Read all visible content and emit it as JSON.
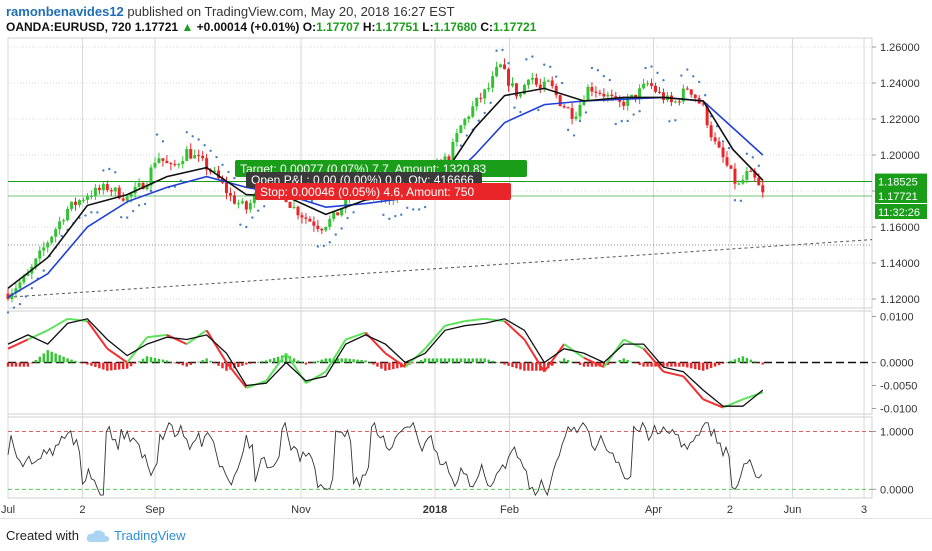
{
  "header": {
    "author": "ramonbenavides12",
    "published": "published on TradingView.com, May 20, 2018 16:27 EST",
    "symbol": "OANDA:EURUSD, 720",
    "last": "1.17721",
    "change": "+0.00014 (+0.01%)",
    "o_label": "O:",
    "o": "1.17707",
    "h_label": "H:",
    "h": "1.17751",
    "l_label": "L:",
    "l": "1.17680",
    "c_label": "C:",
    "c": "1.17721"
  },
  "footer": {
    "created_with": "Created with",
    "brand": "TradingView"
  },
  "colors": {
    "up": "#33c233",
    "down": "#e8262a",
    "ma_fast": "#111111",
    "ma_slow": "#1f3fd6",
    "sar": "#4a7fbf",
    "target": "#1a9e1a",
    "stop": "#e8262a",
    "grid": "#d8d8d8"
  },
  "chart_data": [
    {
      "type": "candlestick",
      "title": "",
      "ylim": [
        1.115,
        1.265
      ],
      "y_ticks": [
        "1.26000",
        "1.24000",
        "1.22000",
        "1.20000",
        "1.18000",
        "1.16000",
        "1.14000",
        "1.12000"
      ],
      "y_tick_values": [
        1.26,
        1.24,
        1.22,
        1.2,
        1.18,
        1.16,
        1.14,
        1.12
      ],
      "x_tick_labels": [
        "Jul",
        "2",
        "Sep",
        "Nov",
        "2018",
        "Feb",
        "Apr",
        "2",
        "Jun",
        "3"
      ],
      "x_tick_positions": [
        0,
        75,
        148,
        295,
        430,
        505,
        650,
        727,
        790,
        862
      ],
      "x_total_units": 870,
      "price_path": [
        [
          0,
          1.123
        ],
        [
          20,
          1.133
        ],
        [
          40,
          1.152
        ],
        [
          60,
          1.17
        ],
        [
          80,
          1.178
        ],
        [
          100,
          1.182
        ],
        [
          120,
          1.176
        ],
        [
          140,
          1.186
        ],
        [
          150,
          1.2
        ],
        [
          165,
          1.192
        ],
        [
          180,
          1.202
        ],
        [
          195,
          1.196
        ],
        [
          210,
          1.188
        ],
        [
          225,
          1.176
        ],
        [
          240,
          1.17
        ],
        [
          255,
          1.182
        ],
        [
          270,
          1.186
        ],
        [
          285,
          1.172
        ],
        [
          300,
          1.165
        ],
        [
          315,
          1.16
        ],
        [
          330,
          1.166
        ],
        [
          345,
          1.178
        ],
        [
          360,
          1.18
        ],
        [
          380,
          1.176
        ],
        [
          400,
          1.18
        ],
        [
          420,
          1.182
        ],
        [
          430,
          1.192
        ],
        [
          445,
          1.2
        ],
        [
          455,
          1.215
        ],
        [
          470,
          1.228
        ],
        [
          485,
          1.238
        ],
        [
          495,
          1.25
        ],
        [
          505,
          1.24
        ],
        [
          515,
          1.232
        ],
        [
          525,
          1.246
        ],
        [
          535,
          1.236
        ],
        [
          545,
          1.24
        ],
        [
          555,
          1.23
        ],
        [
          570,
          1.222
        ],
        [
          585,
          1.238
        ],
        [
          600,
          1.234
        ],
        [
          615,
          1.228
        ],
        [
          630,
          1.232
        ],
        [
          645,
          1.24
        ],
        [
          655,
          1.234
        ],
        [
          670,
          1.228
        ],
        [
          685,
          1.238
        ],
        [
          700,
          1.226
        ],
        [
          710,
          1.208
        ],
        [
          720,
          1.198
        ],
        [
          735,
          1.182
        ],
        [
          745,
          1.19
        ],
        [
          752,
          1.186
        ],
        [
          760,
          1.178
        ]
      ],
      "ma_fast": [
        [
          0,
          1.126
        ],
        [
          40,
          1.143
        ],
        [
          80,
          1.172
        ],
        [
          120,
          1.178
        ],
        [
          160,
          1.188
        ],
        [
          200,
          1.193
        ],
        [
          240,
          1.178
        ],
        [
          280,
          1.177
        ],
        [
          320,
          1.167
        ],
        [
          360,
          1.175
        ],
        [
          400,
          1.178
        ],
        [
          440,
          1.19
        ],
        [
          470,
          1.215
        ],
        [
          500,
          1.233
        ],
        [
          540,
          1.237
        ],
        [
          580,
          1.23
        ],
        [
          620,
          1.232
        ],
        [
          660,
          1.232
        ],
        [
          700,
          1.23
        ],
        [
          730,
          1.203
        ],
        [
          760,
          1.186
        ]
      ],
      "ma_slow": [
        [
          0,
          1.121
        ],
        [
          40,
          1.134
        ],
        [
          80,
          1.16
        ],
        [
          120,
          1.174
        ],
        [
          160,
          1.182
        ],
        [
          200,
          1.188
        ],
        [
          240,
          1.182
        ],
        [
          280,
          1.178
        ],
        [
          320,
          1.171
        ],
        [
          360,
          1.173
        ],
        [
          400,
          1.176
        ],
        [
          440,
          1.184
        ],
        [
          470,
          1.2
        ],
        [
          500,
          1.218
        ],
        [
          540,
          1.228
        ],
        [
          580,
          1.23
        ],
        [
          620,
          1.231
        ],
        [
          660,
          1.232
        ],
        [
          700,
          1.23
        ],
        [
          730,
          1.215
        ],
        [
          760,
          1.2
        ]
      ],
      "trend_line": [
        [
          0,
          1.121
        ],
        [
          870,
          1.153
        ]
      ],
      "levels": {
        "target_level": 1.18525,
        "stop_level": 1.17721,
        "horizontal_line": 1.15
      },
      "price_labels": {
        "target": "1.18525",
        "last": "1.17721",
        "countdown": "11:32:26"
      },
      "annotations": {
        "target": "Target: 0.00077 (0.07%) 7.7, Amount: 1320.83",
        "open": "Open P&L: 0.00 (0.00%) 0.0, Qty: 416666",
        "stop": "Stop: 0.00046 (0.05%) 4.6, Amount: 750"
      }
    },
    {
      "type": "line",
      "title": "",
      "ylim": [
        -0.0112,
        0.0112
      ],
      "y_ticks": [
        "0.0100",
        "0.0000",
        "-0.0050",
        "-0.0100"
      ],
      "y_tick_values": [
        0.01,
        0.0,
        -0.005,
        -0.01
      ],
      "signal_line": [
        [
          0,
          0.004
        ],
        [
          20,
          0.006
        ],
        [
          40,
          0.004
        ],
        [
          60,
          0.0085
        ],
        [
          80,
          0.0095
        ],
        [
          100,
          0.005
        ],
        [
          120,
          0.0015
        ],
        [
          140,
          0.004
        ],
        [
          160,
          0.0055
        ],
        [
          180,
          0.005
        ],
        [
          200,
          0.006
        ],
        [
          220,
          0.002
        ],
        [
          240,
          -0.005
        ],
        [
          260,
          -0.0045
        ],
        [
          280,
          0.0
        ],
        [
          300,
          -0.004
        ],
        [
          320,
          -0.003
        ],
        [
          340,
          0.004
        ],
        [
          360,
          0.006
        ],
        [
          380,
          0.004
        ],
        [
          400,
          0.0
        ],
        [
          420,
          0.002
        ],
        [
          440,
          0.007
        ],
        [
          460,
          0.008
        ],
        [
          480,
          0.0085
        ],
        [
          500,
          0.0095
        ],
        [
          520,
          0.007
        ],
        [
          540,
          0.0
        ],
        [
          560,
          0.003
        ],
        [
          580,
          0.002
        ],
        [
          600,
          0.0
        ],
        [
          620,
          0.004
        ],
        [
          640,
          0.004
        ],
        [
          660,
          -0.001
        ],
        [
          680,
          -0.002
        ],
        [
          700,
          -0.006
        ],
        [
          720,
          -0.0095
        ],
        [
          740,
          -0.0095
        ],
        [
          760,
          -0.006
        ]
      ],
      "fast_line": [
        [
          0,
          0.003
        ],
        [
          20,
          0.005
        ],
        [
          40,
          0.007
        ],
        [
          60,
          0.0095
        ],
        [
          80,
          0.009
        ],
        [
          100,
          0.003
        ],
        [
          120,
          0.0
        ],
        [
          140,
          0.0055
        ],
        [
          160,
          0.006
        ],
        [
          180,
          0.004
        ],
        [
          200,
          0.007
        ],
        [
          220,
          0.0
        ],
        [
          240,
          -0.0055
        ],
        [
          260,
          -0.004
        ],
        [
          280,
          0.002
        ],
        [
          300,
          -0.0045
        ],
        [
          320,
          -0.002
        ],
        [
          340,
          0.005
        ],
        [
          360,
          0.0065
        ],
        [
          380,
          0.002
        ],
        [
          400,
          -0.001
        ],
        [
          420,
          0.003
        ],
        [
          440,
          0.008
        ],
        [
          460,
          0.009
        ],
        [
          480,
          0.0095
        ],
        [
          500,
          0.009
        ],
        [
          520,
          0.005
        ],
        [
          540,
          -0.002
        ],
        [
          560,
          0.004
        ],
        [
          580,
          0.001
        ],
        [
          600,
          -0.001
        ],
        [
          620,
          0.005
        ],
        [
          640,
          0.003
        ],
        [
          660,
          -0.002
        ],
        [
          680,
          -0.003
        ],
        [
          700,
          -0.008
        ],
        [
          720,
          -0.0098
        ],
        [
          740,
          -0.008
        ],
        [
          760,
          -0.0065
        ]
      ]
    },
    {
      "type": "line",
      "title": "",
      "ylim": [
        -0.15,
        1.25
      ],
      "y_ticks": [
        "1.0000",
        "0.0000"
      ],
      "y_tick_values": [
        1.0,
        0.0
      ],
      "upper_level": 1.0,
      "lower_level": 0.0,
      "oscillator_seed": 7
    }
  ]
}
